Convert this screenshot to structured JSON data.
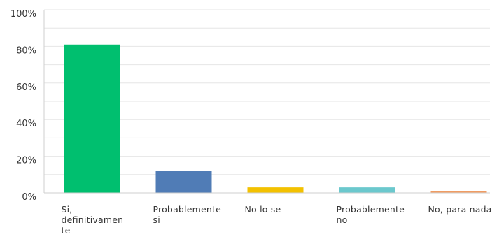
{
  "chart_data": {
    "type": "bar",
    "title": "",
    "xlabel": "",
    "ylabel": "",
    "categories": [
      "Si,\ndefinitivamen\nte",
      "Probablemente\nsi",
      "No lo se",
      "Probablemente\nno",
      "No, para nada"
    ],
    "values": [
      81,
      12,
      3,
      3,
      1
    ],
    "ylim": [
      0,
      100
    ],
    "yticks": [
      "0%",
      "20%",
      "40%",
      "60%",
      "80%",
      "100%"
    ],
    "grid": true,
    "colors": [
      "#00bf6f",
      "#507cb6",
      "#f3c100",
      "#6bc8cd",
      "#f09c63"
    ]
  }
}
